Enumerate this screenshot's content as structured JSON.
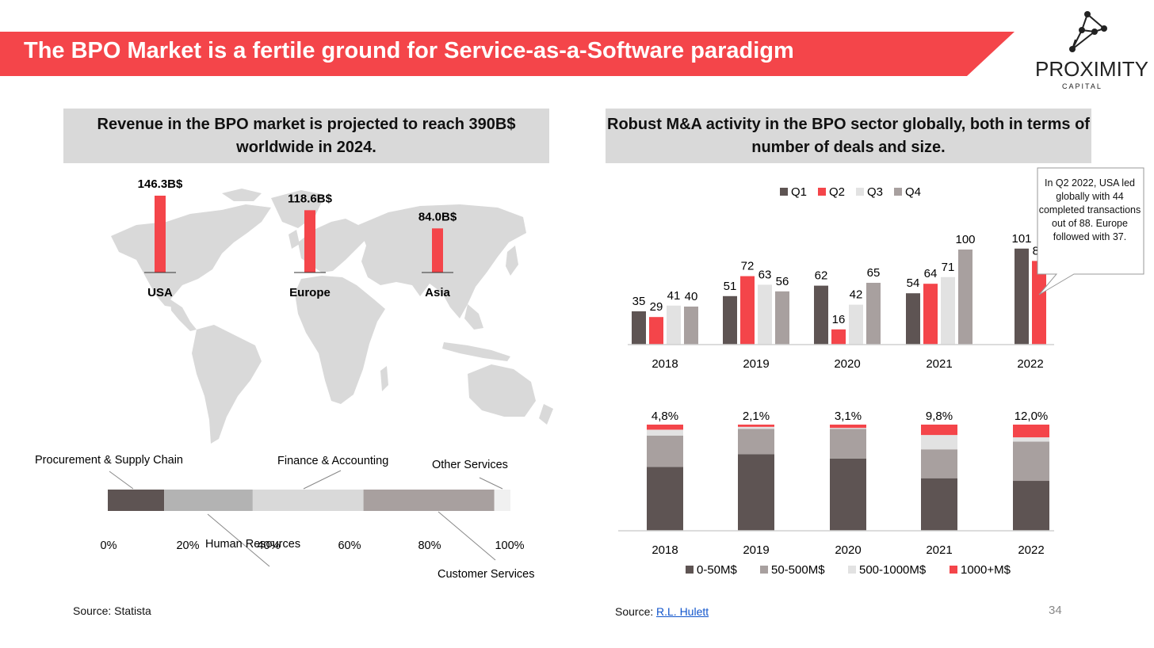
{
  "title": "The BPO Market is a fertile ground for Service-as-a-Software paradigm",
  "logo": {
    "name": "PROXIMITY",
    "sub": "CAPITAL"
  },
  "left_panel": {
    "heading": "Revenue in the BPO market is projected to reach 390B$ worldwide in 2024.",
    "source_label": "Source: Statista"
  },
  "right_panel": {
    "heading": "Robust M&A activity in the BPO sector globally, both in terms of number of deals and size.",
    "source_label": "Source:",
    "source_link": "R.L. Hulett",
    "callout": "In Q2 2022, USA led globally with 44 completed transactions out of 88. Europe followed with 37."
  },
  "page_number": "34",
  "colors": {
    "accent": "#f4454a",
    "dark": "#5e5453",
    "mid": "#a8a09f",
    "light": "#e2e2e2",
    "map": "#d9d9d9",
    "heading_bg": "#d9d9d9"
  },
  "chart_data": [
    {
      "type": "bar",
      "id": "map-revenue",
      "title": "Revenue in the BPO market",
      "categories": [
        "USA",
        "Europe",
        "Asia"
      ],
      "values": [
        146.3,
        118.6,
        84.0
      ],
      "value_labels": [
        "146.3B$",
        "118.6B$",
        "84.0B$"
      ],
      "unit": "B$"
    },
    {
      "type": "bar",
      "id": "segment-split",
      "stacked": true,
      "orientation": "horizontal",
      "segments": [
        {
          "name": "Procurement & Supply Chain",
          "value": 14
        },
        {
          "name": "Human Resources",
          "value": 22
        },
        {
          "name": "Finance & Accounting",
          "value": 27.5
        },
        {
          "name": "Customer Services",
          "value": 32.5
        },
        {
          "name": "Other Services",
          "value": 4
        }
      ],
      "ticks": [
        "0%",
        "20%",
        "40%",
        "60%",
        "80%",
        "100%"
      ],
      "xlim": [
        0,
        100
      ]
    },
    {
      "type": "bar",
      "id": "deals-count",
      "categories": [
        "2018",
        "2019",
        "2020",
        "2021",
        "2022"
      ],
      "series": [
        {
          "name": "Q1",
          "values": [
            35,
            51,
            62,
            54,
            101
          ]
        },
        {
          "name": "Q2",
          "values": [
            29,
            72,
            16,
            64,
            88
          ]
        },
        {
          "name": "Q3",
          "values": [
            41,
            63,
            42,
            71,
            null
          ]
        },
        {
          "name": "Q4",
          "values": [
            40,
            56,
            65,
            100,
            null
          ]
        }
      ],
      "ylim": [
        0,
        110
      ],
      "legend": "top"
    },
    {
      "type": "bar",
      "id": "deals-size",
      "stacked": true,
      "normalized": true,
      "categories": [
        "2018",
        "2019",
        "2020",
        "2021",
        "2022"
      ],
      "series": [
        {
          "name": "0-50M$",
          "values": [
            60.2,
            72.2,
            68.1,
            49.5,
            47.0
          ]
        },
        {
          "name": "50-500M$",
          "values": [
            29.5,
            23.7,
            27.8,
            27.2,
            37.0
          ]
        },
        {
          "name": "500-1000M$",
          "values": [
            5.5,
            2.0,
            1.0,
            13.5,
            4.0
          ]
        },
        {
          "name": "1000+M$",
          "values": [
            4.8,
            2.1,
            3.1,
            9.8,
            12.0
          ]
        }
      ],
      "top_labels": [
        "4,8%",
        "2,1%",
        "3,1%",
        "9,8%",
        "12,0%"
      ],
      "ylim": [
        0,
        100
      ],
      "legend": "bottom"
    }
  ]
}
